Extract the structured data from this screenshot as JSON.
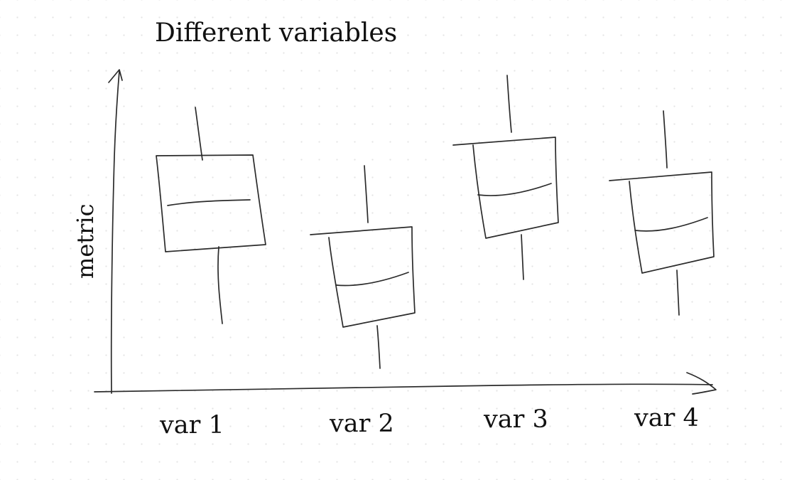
{
  "diagram": {
    "title": "Different variables",
    "y_axis_label": "metric",
    "categories": [
      "var 1",
      "var 2",
      "var 3",
      "var 4"
    ],
    "line_color": "#2b2b2b",
    "background_color": "#ffffff"
  }
}
